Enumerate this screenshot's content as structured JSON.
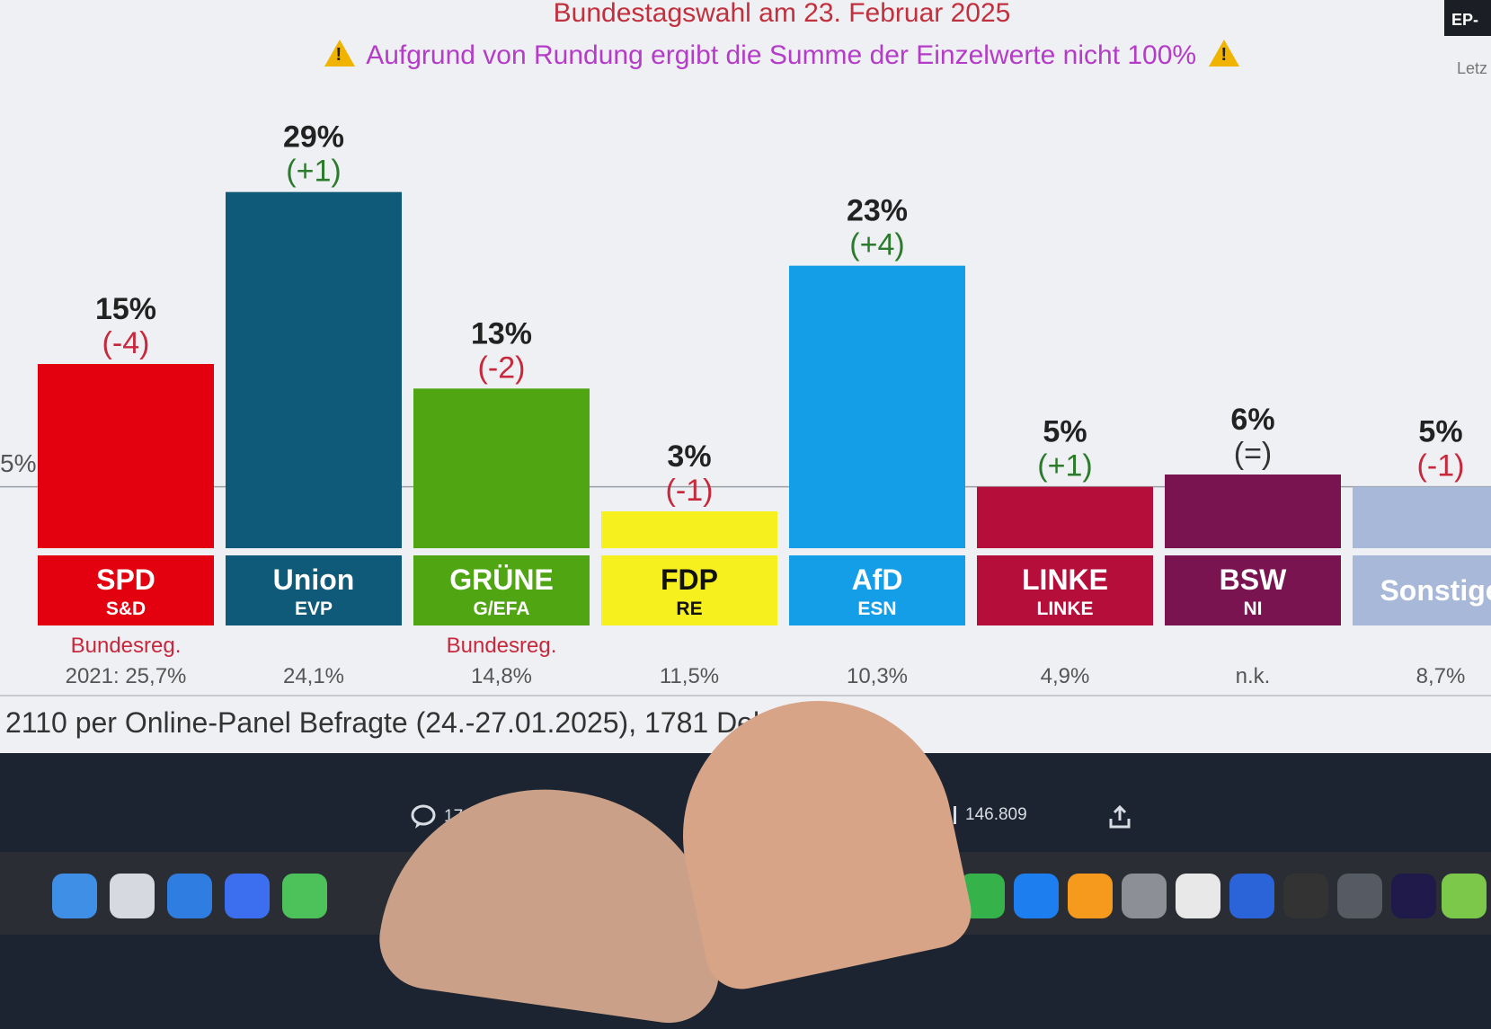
{
  "header": {
    "title": "Bundestagswahl am 23. Februar 2025",
    "warning": "Aufgrund von Rundung ergibt die Summe der Einzelwerte nicht 100%",
    "badge": "EP-",
    "corner_text": "Letz"
  },
  "chart_data": {
    "type": "bar",
    "title": "Bundestagswahl am 23. Februar 2025",
    "categories": [
      "SPD",
      "Union",
      "GRÜNE",
      "FDP",
      "AfD",
      "LINKE",
      "BSW",
      "Sonstige"
    ],
    "values": [
      15,
      29,
      13,
      3,
      23,
      5,
      6,
      5
    ],
    "value_labels": [
      "15%",
      "29%",
      "13%",
      "3%",
      "23%",
      "5%",
      "6%",
      "5%"
    ],
    "changes": [
      "(-4)",
      "(+1)",
      "(-2)",
      "(-1)",
      "(+4)",
      "(+1)",
      "(=)",
      "(-1)"
    ],
    "change_colors": [
      "#c8283c",
      "#2c7a2c",
      "#c8283c",
      "#c8283c",
      "#2c7a2c",
      "#2c7a2c",
      "#333333",
      "#c8283c"
    ],
    "groups": [
      "S&D",
      "EVP",
      "G/EFA",
      "RE",
      "ESN",
      "LINKE",
      "NI",
      ""
    ],
    "colors": [
      "#e3000f",
      "#0f5a78",
      "#4fa512",
      "#f5f01e",
      "#159ee8",
      "#b50e3b",
      "#7a1451",
      "#a8b8d8"
    ],
    "label_text_colors": [
      "#ffffff",
      "#ffffff",
      "#ffffff",
      "#111111",
      "#ffffff",
      "#ffffff",
      "#ffffff",
      "#ffffff"
    ],
    "notes": [
      "Bundesreg.",
      "",
      "Bundesreg.",
      "",
      "",
      "",
      "",
      ""
    ],
    "previous": [
      "2021: 25,7%",
      "24,1%",
      "14,8%",
      "11,5%",
      "10,3%",
      "4,9%",
      "n.k.",
      "8,7%"
    ],
    "reference_line": 5,
    "reference_label": "5%",
    "ylim": [
      0,
      30
    ]
  },
  "footer": {
    "survey": "2110 per Online-Panel Befragte (24.-27.01.2025), 1781 Deklar"
  },
  "stats": {
    "comments": "171",
    "views": "146.809"
  }
}
